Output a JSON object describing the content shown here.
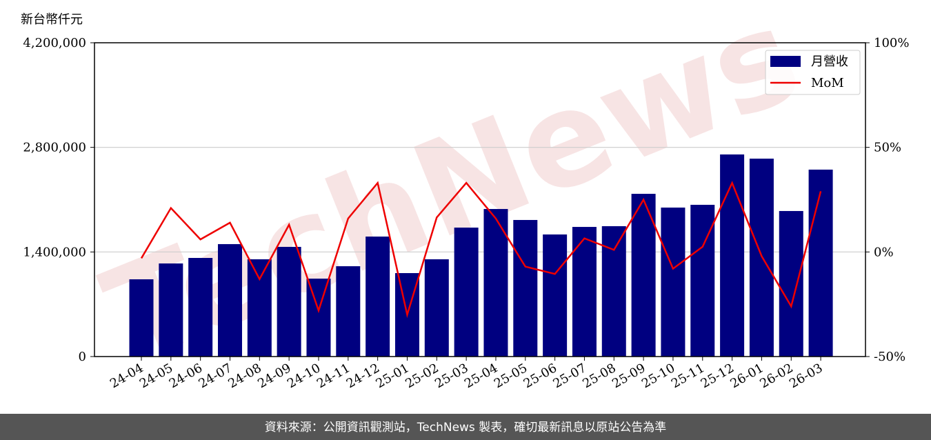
{
  "chart_data": {
    "type": "bar-line",
    "y_label": "新台幣仟元",
    "watermark": "TechNews",
    "source": "資料來源：公開資訊觀測站，TechNews 製表，確切最新訊息以原站公告為準",
    "categories": [
      "24-04",
      "24-05",
      "24-06",
      "24-07",
      "24-08",
      "24-09",
      "24-10",
      "24-11",
      "24-12",
      "25-01",
      "25-02",
      "25-03",
      "25-04",
      "25-05",
      "25-06",
      "25-07",
      "25-08",
      "25-09",
      "25-10",
      "25-11",
      "25-12",
      "26-01",
      "26-02",
      "26-03"
    ],
    "series": [
      {
        "name": "月營收",
        "color": "#000080",
        "values": [
          1034000,
          1246000,
          1320000,
          1505000,
          1302000,
          1468000,
          1043000,
          1209000,
          1606000,
          1117000,
          1302000,
          1726000,
          1975000,
          1828000,
          1634000,
          1735000,
          1745000,
          2178000,
          1994000,
          2031000,
          2705000,
          2649000,
          1948000,
          2502000
        ]
      },
      {
        "name": "MoM",
        "color": "#ee0000",
        "axis": "y2",
        "values": [
          -3,
          21,
          6,
          14,
          -13,
          13,
          -28,
          16,
          33,
          -30,
          16.5,
          33,
          16,
          -7,
          -10.5,
          6.5,
          1,
          25,
          -8,
          2.5,
          33,
          -2,
          -26,
          29
        ]
      }
    ],
    "ylim": [
      0,
      4200000
    ],
    "yticks": [
      {
        "value": 0,
        "label": "0"
      },
      {
        "value": 1400000,
        "label": "1,400,000"
      },
      {
        "value": 2800000,
        "label": "2,800,000"
      },
      {
        "value": 4200000,
        "label": "4,200,000"
      }
    ],
    "y2lim": [
      -50,
      100
    ],
    "y2ticks": [
      {
        "value": -50,
        "label": "-50%"
      },
      {
        "value": 0,
        "label": "0%"
      },
      {
        "value": 50,
        "label": "50%"
      },
      {
        "value": 100,
        "label": "100%"
      }
    ],
    "grid": true,
    "legend": "upper right"
  }
}
